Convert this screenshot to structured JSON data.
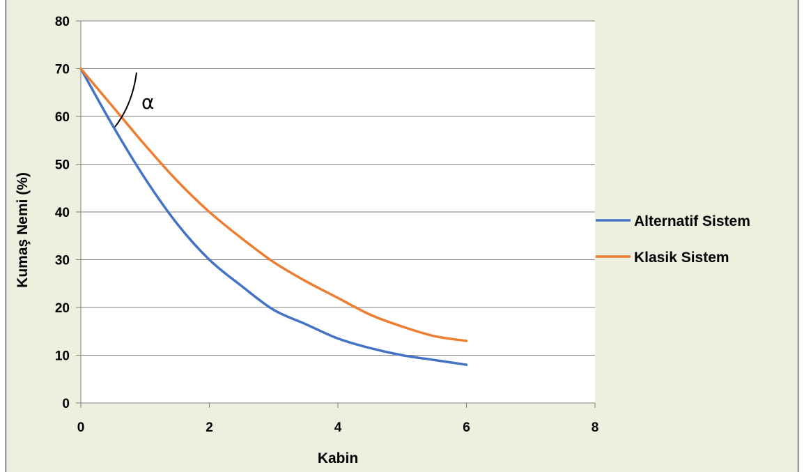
{
  "chart_data": {
    "type": "line",
    "xlabel": "Kabin",
    "ylabel": "Kumaş Nemi (%)",
    "xlim": [
      0,
      8
    ],
    "ylim": [
      0,
      80
    ],
    "x_ticks": [
      "0",
      "2",
      "4",
      "6",
      "8"
    ],
    "y_ticks": [
      "0",
      "10",
      "20",
      "30",
      "40",
      "50",
      "60",
      "70",
      "80"
    ],
    "grid": "horizontal",
    "legend_position": "right",
    "annotation": "α",
    "series": [
      {
        "name": "Alternatif Sistem",
        "color": "#4472c4",
        "x": [
          0,
          0.5,
          1,
          1.5,
          2,
          2.5,
          3,
          3.5,
          4,
          4.5,
          5,
          5.5,
          6
        ],
        "y": [
          70,
          58,
          47,
          37.5,
          30,
          24.5,
          19.5,
          16.5,
          13.5,
          11.5,
          10,
          9,
          8
        ]
      },
      {
        "name": "Klasik Sistem",
        "color": "#ed7d31",
        "x": [
          0,
          0.5,
          1,
          1.5,
          2,
          2.5,
          3,
          3.5,
          4,
          4.5,
          5,
          5.5,
          6
        ],
        "y": [
          70,
          62,
          54,
          46.5,
          40,
          34.5,
          29.5,
          25.5,
          22,
          18.5,
          16,
          14,
          13
        ]
      }
    ]
  }
}
